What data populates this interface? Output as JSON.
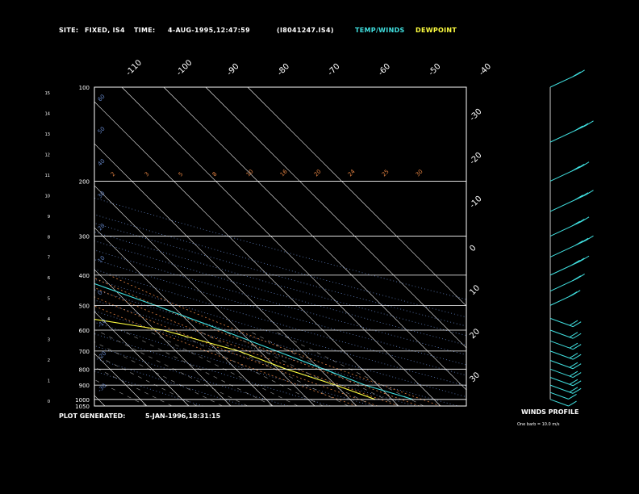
{
  "header": {
    "site_label": "SITE:",
    "site_value": "FIXED, IS4",
    "time_label": "TIME:",
    "time_value": "4-AUG-1995,12:47:59",
    "id_value": "(I8041247.IS4)",
    "legend_temp": "TEMP/WINDS",
    "legend_dew": "DEWPOINT"
  },
  "footer": {
    "plot_label": "PLOT GENERATED:",
    "plot_value": "5-JAN-1996,18:31:15",
    "winds_title": "WINDS PROFILE",
    "winds_note": "One barb = 10.0 m/s"
  },
  "colors": {
    "temp": "#40e0e0",
    "dewpoint": "#ffff40",
    "grid": "#ffffff",
    "isotherm_label": "#ffffff",
    "mixing_ratio": "#e08040",
    "adiabat": "#6080c0"
  },
  "chart_data": {
    "type": "line",
    "title": "",
    "pressure_ticks": [
      "100",
      "200",
      "300",
      "400",
      "500",
      "600",
      "700",
      "800",
      "900",
      "1000",
      "1050"
    ],
    "height_ticks": [
      "15",
      "14",
      "13",
      "12",
      "11",
      "10",
      "9",
      "8",
      "7",
      "6",
      "5",
      "4",
      "3",
      "2",
      "1",
      "0"
    ],
    "temperature_top_labels": [
      "-110",
      "-100",
      "-90",
      "-80",
      "-70",
      "-60",
      "-50",
      "-40"
    ],
    "temperature_right_labels": [
      "-30",
      "-20",
      "-10",
      "0",
      "10",
      "20",
      "30"
    ],
    "mixing_ratio_labels": [
      "2",
      "3",
      "5",
      "8",
      "10",
      "16",
      "20",
      "24",
      "25",
      "30"
    ],
    "adiabat_labels": [
      "60",
      "50",
      "40",
      "30",
      "20",
      "10",
      "0",
      "-10",
      "-20",
      "-30"
    ],
    "series": [
      {
        "name": "TEMP/WINDS",
        "points": [
          {
            "p": 100,
            "t": -58
          },
          {
            "p": 130,
            "t": -63
          },
          {
            "p": 160,
            "t": -66
          },
          {
            "p": 200,
            "t": -59
          },
          {
            "p": 250,
            "t": -51
          },
          {
            "p": 300,
            "t": -43
          },
          {
            "p": 400,
            "t": -27
          },
          {
            "p": 500,
            "t": -14
          },
          {
            "p": 600,
            "t": -4
          },
          {
            "p": 700,
            "t": 4
          },
          {
            "p": 800,
            "t": 11
          },
          {
            "p": 900,
            "t": 17
          },
          {
            "p": 1000,
            "t": 25
          }
        ]
      },
      {
        "name": "DEWPOINT",
        "points": [
          {
            "p": 100,
            "t": -90
          },
          {
            "p": 130,
            "t": -96
          },
          {
            "p": 170,
            "t": -85
          },
          {
            "p": 200,
            "t": -88
          },
          {
            "p": 250,
            "t": -97
          },
          {
            "p": 300,
            "t": -106
          },
          {
            "p": 350,
            "t": -112
          },
          {
            "p": 400,
            "t": -75
          },
          {
            "p": 430,
            "t": -62
          },
          {
            "p": 460,
            "t": -54
          },
          {
            "p": 500,
            "t": -52
          },
          {
            "p": 550,
            "t": -33
          },
          {
            "p": 600,
            "t": -18
          },
          {
            "p": 700,
            "t": -5
          },
          {
            "p": 800,
            "t": 2
          },
          {
            "p": 900,
            "t": 10
          },
          {
            "p": 1000,
            "t": 16
          }
        ]
      }
    ],
    "wind_barbs": [
      {
        "p": 100,
        "speed": 20
      },
      {
        "p": 150,
        "speed": 30
      },
      {
        "p": 200,
        "speed": 25
      },
      {
        "p": 250,
        "speed": 30
      },
      {
        "p": 300,
        "speed": 25
      },
      {
        "p": 350,
        "speed": 30
      },
      {
        "p": 400,
        "speed": 25
      },
      {
        "p": 450,
        "speed": 20
      },
      {
        "p": 500,
        "speed": 15
      },
      {
        "p": 550,
        "speed": 15
      },
      {
        "p": 600,
        "speed": 15
      },
      {
        "p": 650,
        "speed": 15
      },
      {
        "p": 700,
        "speed": 15
      },
      {
        "p": 750,
        "speed": 15
      },
      {
        "p": 800,
        "speed": 15
      },
      {
        "p": 850,
        "speed": 15
      },
      {
        "p": 900,
        "speed": 15
      },
      {
        "p": 950,
        "speed": 10
      },
      {
        "p": 1000,
        "speed": 10
      }
    ]
  }
}
